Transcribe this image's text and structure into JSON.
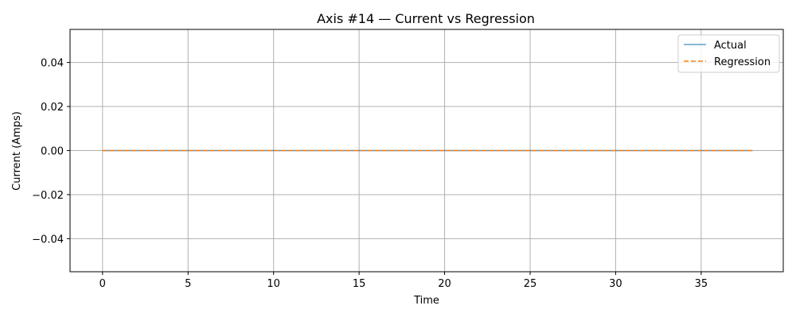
{
  "chart_data": {
    "type": "line",
    "title": "Axis #14 — Current vs Regression",
    "xlabel": "Time",
    "ylabel": "Current (Amps)",
    "xlim": [
      -1.9,
      39.8
    ],
    "ylim": [
      -0.055,
      0.055
    ],
    "x_ticks": [
      0,
      5,
      10,
      15,
      20,
      25,
      30,
      35
    ],
    "y_ticks": [
      -0.04,
      -0.02,
      0.0,
      0.02,
      0.04
    ],
    "y_tick_labels": [
      "−0.04",
      "−0.02",
      "0.00",
      "0.02",
      "0.04"
    ],
    "grid": true,
    "legend_position": "upper right",
    "series": [
      {
        "name": "Actual",
        "color": "#1f77b4",
        "style": "solid",
        "x": [
          0,
          38
        ],
        "y": [
          0,
          0
        ]
      },
      {
        "name": "Regression",
        "color": "#ff7f0e",
        "style": "dashed",
        "x": [
          0,
          38
        ],
        "y": [
          0,
          0
        ]
      }
    ]
  }
}
